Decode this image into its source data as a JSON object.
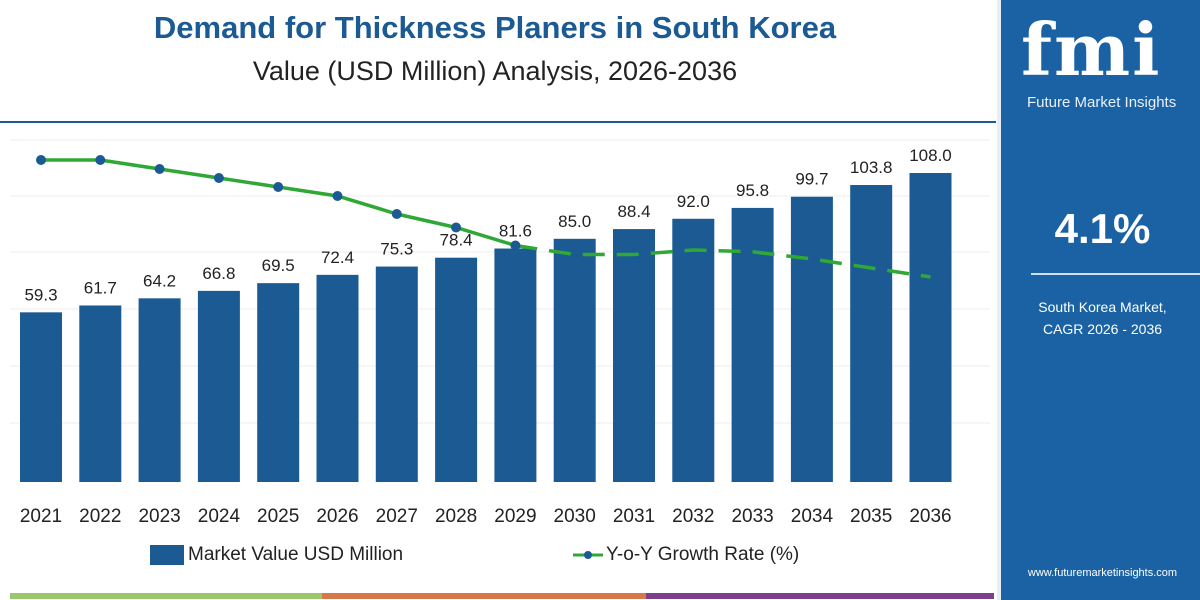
{
  "header": {
    "title": "Demand for Thickness Planers in South Korea",
    "subtitle": "Value (USD Million) Analysis, 2026-2036"
  },
  "side_panel": {
    "logo_text": "fmi",
    "logo_subtitle": "Future Market Insights",
    "cagr_value": "4.1%",
    "cagr_label_line1": "South Korea Market,",
    "cagr_label_line2": "CAGR 2026 - 2036",
    "website": "www.futuremarketinsights.com"
  },
  "legend": {
    "bar_label": "Market Value USD Million",
    "line_label": "Y-o-Y Growth Rate (%)"
  },
  "colors": {
    "bar": "#1b5a93",
    "line": "#2fa836",
    "marker": "#1b5a93",
    "panel": "#1a62a3",
    "stripe": [
      "#9bc86a",
      "#d9774a",
      "#7b3f8c"
    ]
  },
  "chart_data": {
    "type": "bar+line",
    "title": "Demand for Thickness Planers in South Korea",
    "subtitle": "Value (USD Million) Analysis, 2026-2036",
    "categories": [
      "2021",
      "2022",
      "2023",
      "2024",
      "2025",
      "2026",
      "2027",
      "2028",
      "2029",
      "2030",
      "2031",
      "2032",
      "2033",
      "2034",
      "2035",
      "2036"
    ],
    "series": [
      {
        "name": "Market Value USD Million",
        "type": "bar",
        "values": [
          59.3,
          61.7,
          64.2,
          66.8,
          69.5,
          72.4,
          75.3,
          78.4,
          81.6,
          85.0,
          88.4,
          92.0,
          95.8,
          99.7,
          103.8,
          108.0
        ],
        "data_labels": [
          "59.3",
          "61.7",
          "64.2",
          "66.8",
          "69.5",
          "72.4",
          "75.3",
          "78.4",
          "81.6",
          "85.0",
          "88.4",
          "92.0",
          "95.8",
          "99.7",
          "103.8",
          "108.0"
        ]
      },
      {
        "name": "Y-o-Y Growth Rate (%)",
        "type": "line",
        "values": [
          4.6,
          4.6,
          4.5,
          4.4,
          4.3,
          4.2,
          4.0,
          3.85,
          3.65,
          3.55,
          3.55,
          3.6,
          3.58,
          3.5,
          3.4,
          3.3
        ],
        "solid_until": "2029",
        "dashed_after": "2029",
        "markers_until": "2029"
      }
    ],
    "ylim": [
      0,
      108
    ],
    "grid": "horizontal",
    "legend_position": "bottom"
  }
}
